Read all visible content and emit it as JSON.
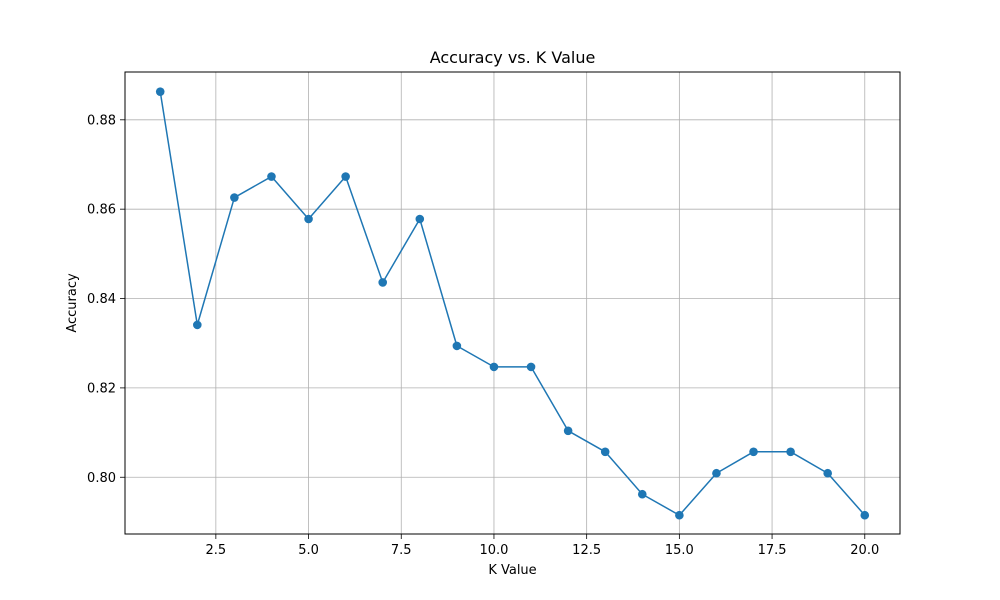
{
  "chart_data": {
    "type": "line",
    "title": "Accuracy vs. K Value",
    "xlabel": "K Value",
    "ylabel": "Accuracy",
    "xlim": [
      0.05,
      20.95
    ],
    "ylim": [
      0.7873,
      0.8907
    ],
    "grid": true,
    "x_ticks": [
      2.5,
      5.0,
      7.5,
      10.0,
      12.5,
      15.0,
      17.5,
      20.0
    ],
    "x_tick_labels": [
      "2.5",
      "5.0",
      "7.5",
      "10.0",
      "12.5",
      "15.0",
      "17.5",
      "20.0"
    ],
    "y_ticks": [
      0.8,
      0.82,
      0.84,
      0.86,
      0.88
    ],
    "y_tick_labels": [
      "0.80",
      "0.82",
      "0.84",
      "0.86",
      "0.88"
    ],
    "series": [
      {
        "color": "#1f77b4",
        "marker": "circle",
        "x": [
          1,
          2,
          3,
          4,
          5,
          6,
          7,
          8,
          9,
          10,
          11,
          12,
          13,
          14,
          15,
          16,
          17,
          18,
          19,
          20
        ],
        "values": [
          0.8863,
          0.8341,
          0.8626,
          0.8673,
          0.8578,
          0.8673,
          0.8436,
          0.8578,
          0.8294,
          0.8247,
          0.8247,
          0.8104,
          0.8057,
          0.7962,
          0.7915,
          0.8009,
          0.8057,
          0.8057,
          0.8009,
          0.7915
        ]
      }
    ]
  }
}
